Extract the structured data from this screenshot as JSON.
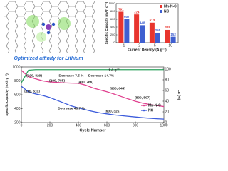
{
  "image": {
    "caption": "Optimized affinity for Lithium"
  },
  "chart_data": [
    {
      "type": "bar",
      "x_label": "Current Density (A g⁻¹)",
      "y_label": "Specific Capacity (mAh g⁻¹)",
      "categories": [
        "1",
        "2",
        "5",
        "10"
      ],
      "series": [
        {
          "name": "Mn-N-C",
          "color": "#e8352e",
          "values": [
            791,
            724,
            513,
            328
          ]
        },
        {
          "name": "NC",
          "color": "#3f5fd0",
          "values": [
            607,
            448,
            255,
            152
          ]
        }
      ],
      "ylim": [
        0,
        1000
      ],
      "yticks": [
        0,
        200,
        400,
        600,
        800,
        1000
      ],
      "legend": "upper right"
    },
    {
      "type": "line",
      "x_label": "Cycle Number",
      "y_label": "Specific Capacity (mAh g⁻¹)",
      "y2_label": "CE (%)",
      "x": [
        1,
        50,
        100,
        150,
        200,
        250,
        300,
        350,
        400,
        450,
        500,
        550,
        600,
        650,
        700,
        750,
        800,
        850,
        900,
        950,
        1000
      ],
      "series": [
        {
          "name": "Mn-N-C",
          "color": "#e0418f",
          "values": [
            950,
            860,
            829,
            800,
            785,
            778,
            772,
            768,
            766,
            740,
            700,
            670,
            644,
            610,
            575,
            540,
            507,
            480,
            460,
            445,
            430
          ]
        },
        {
          "name": "NC",
          "color": "#3b5bdb",
          "values": [
            720,
            640,
            612,
            590,
            560,
            520,
            480,
            440,
            410,
            385,
            360,
            340,
            325,
            310,
            300,
            290,
            280,
            270,
            262,
            255,
            250
          ]
        },
        {
          "color": "#2ca25f",
          "axis": "y2",
          "values": [
            75,
            98,
            99,
            99,
            99,
            99,
            99,
            99,
            99,
            99,
            99,
            99,
            99,
            99,
            99,
            99,
            99,
            99,
            99,
            99,
            99
          ]
        }
      ],
      "xlim": [
        0,
        1000
      ],
      "xticks": [
        0,
        200,
        400,
        600,
        800,
        1000
      ],
      "ylim": [
        200,
        1000
      ],
      "yticks": [
        200,
        400,
        600,
        800,
        1000
      ],
      "y2lim": [
        0,
        104
      ],
      "y2ticks": [
        0,
        20,
        40,
        60,
        80,
        100
      ],
      "legend": "right",
      "annotations": [
        "1 A g⁻¹",
        "Decrease 7.5 %",
        "Decrease 14.7%",
        "(100, 829)",
        "(200, 785)",
        "(400, 766)",
        "(600, 644)",
        "(800, 507)",
        "(110, 610)",
        "Decrease 46.7 %",
        "(600, 325)"
      ]
    }
  ]
}
